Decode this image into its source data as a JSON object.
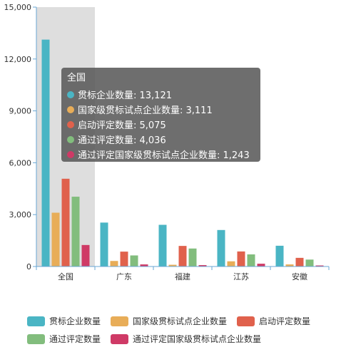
{
  "chart_data": {
    "type": "bar",
    "categories": [
      "全国",
      "广东",
      "福建",
      "江苏",
      "安徽"
    ],
    "series": [
      {
        "name": "贯标企业数量",
        "color": "#4ab5c4",
        "values": [
          13121,
          2540,
          2410,
          2110,
          1200
        ]
      },
      {
        "name": "国家级贯标试点企业数量",
        "color": "#e8ad58",
        "values": [
          3111,
          320,
          100,
          300,
          120
        ]
      },
      {
        "name": "启动评定数量",
        "color": "#e0614c",
        "values": [
          5075,
          860,
          1190,
          870,
          500
        ]
      },
      {
        "name": "通过评定数量",
        "color": "#82bd7d",
        "values": [
          4036,
          640,
          1040,
          700,
          400
        ]
      },
      {
        "name": "通过评定国家级贯标试点企业数量",
        "color": "#cf3a66",
        "values": [
          1243,
          120,
          80,
          160,
          60
        ]
      }
    ],
    "ylim": [
      0,
      15000
    ],
    "yticks": [
      "0",
      "3,000",
      "6,000",
      "9,000",
      "12,000",
      "15,000"
    ],
    "highlighted_category": 0,
    "legend_position": "bottom"
  },
  "tooltip": {
    "title": "全国",
    "rows": [
      {
        "text": "贯标企业数量: 13,121",
        "color": "#4ab5c4"
      },
      {
        "text": "国家级贯标试点企业数量: 3,111",
        "color": "#e8ad58"
      },
      {
        "text": "启动评定数量: 5,075",
        "color": "#e0614c"
      },
      {
        "text": "通过评定数量: 4,036",
        "color": "#82bd7d"
      },
      {
        "text": "通过评定国家级贯标试点企业数量: 1,243",
        "color": "#cf3a66"
      }
    ]
  }
}
